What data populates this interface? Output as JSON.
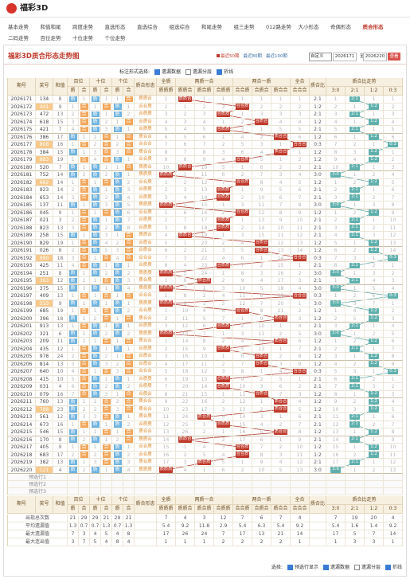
{
  "header": {
    "logo": "福彩3D"
  },
  "nav": {
    "items": [
      "基本走势",
      "和值和尾",
      "跨度走势",
      "直选形态",
      "直选综合",
      "组选综合",
      "和尾走势",
      "组三走势",
      "012路走势",
      "大小形态",
      "奇偶形态",
      "质合形态",
      "二码走势",
      "百位走势",
      "十位走势",
      "个位走势"
    ],
    "active": 11
  },
  "panel": {
    "title": "福彩3D质合形态走势图",
    "periods": [
      "最近50期",
      "最近80期",
      "最近100期"
    ],
    "active_period": 0,
    "custom": "自定义",
    "from": "2026171",
    "to_label": "至",
    "to": "2026220",
    "button": "查看"
  },
  "options": {
    "label": "标注形式选择:",
    "items": [
      {
        "label": "遗漏数据",
        "checked": true
      },
      {
        "label": "遗漏分层",
        "checked": false
      },
      {
        "label": "折线",
        "checked": true
      }
    ]
  },
  "table": {
    "group_headers": [
      "期号",
      "奖号",
      "和值",
      "百位",
      "十位",
      "个位",
      "质合形态",
      "全质",
      "两质一合",
      "两合一质",
      "全合",
      "质合比",
      "质合比走势"
    ],
    "digit_labels": [
      "质",
      "合"
    ],
    "forms": [
      "质质质",
      "质质合",
      "质合质",
      "合质质",
      "合合质",
      "合质合",
      "质合合",
      "合合合"
    ],
    "ratios": [
      "3:0",
      "2:1",
      "1:2",
      "0:3"
    ],
    "rows": [
      [
        "2026171",
        "134",
        8,
        "质",
        1,
        "质",
        1,
        1,
        "合",
        "质质合",
        1,
        "质质合",
        1,
        1,
        1,
        1,
        1,
        1,
        "2:1",
        1,
        "2:1",
        1,
        1
      ],
      [
        "2026172",
        "441",
        9,
        1,
        "合",
        1,
        "合",
        "质",
        1,
        "合合质",
        2,
        1,
        2,
        2,
        "合合质",
        2,
        2,
        2,
        "1:2",
        2,
        1,
        "1:2",
        2
      ],
      [
        "2026173",
        "472",
        13,
        2,
        "合",
        "质",
        1,
        "质",
        2,
        "合质质",
        3,
        2,
        3,
        "合质质",
        1,
        3,
        3,
        3,
        "2:1",
        3,
        "2:1",
        1,
        3
      ],
      [
        "2026174",
        "618",
        15,
        3,
        "合",
        "质",
        2,
        1,
        "合",
        "合质合",
        4,
        3,
        4,
        1,
        2,
        "合质合",
        4,
        4,
        "1:2",
        4,
        1,
        "1:2",
        4
      ],
      [
        "2026175",
        "421",
        7,
        4,
        "合",
        "质",
        3,
        "质",
        1,
        "合质质",
        5,
        4,
        5,
        "合质质",
        3,
        1,
        5,
        5,
        "2:1",
        5,
        "2:1",
        1,
        5
      ],
      [
        "2026176",
        "386",
        17,
        "质",
        1,
        1,
        "合",
        1,
        "合",
        "质合合",
        6,
        5,
        6,
        1,
        4,
        2,
        "质合合",
        6,
        "1:2",
        6,
        1,
        "1:2",
        6
      ],
      [
        "2026177",
        "808",
        16,
        1,
        "合",
        2,
        "合",
        2,
        "合",
        "合合合",
        7,
        6,
        7,
        2,
        5,
        3,
        1,
        "合合合",
        "0:3",
        7,
        2,
        1,
        "0:3"
      ],
      [
        "2026178",
        "384",
        15,
        "质",
        1,
        3,
        "合",
        3,
        "合",
        "质合合",
        8,
        7,
        8,
        3,
        6,
        4,
        "质合合",
        1,
        "1:2",
        8,
        3,
        "1:2",
        1
      ],
      [
        "2026179",
        "883",
        19,
        1,
        "合",
        4,
        "合",
        "质",
        1,
        "合合质",
        9,
        8,
        9,
        4,
        "合合质",
        5,
        1,
        2,
        "1:2",
        9,
        4,
        "1:2",
        2
      ],
      [
        "2026180",
        "520",
        7,
        "质",
        1,
        "质",
        1,
        1,
        "合",
        "质质合",
        10,
        "质质合",
        10,
        5,
        1,
        6,
        2,
        3,
        "2:1",
        10,
        "2:1",
        1,
        3
      ],
      [
        "2026181",
        "752",
        14,
        "质",
        2,
        "质",
        2,
        "质",
        1,
        "质质质",
        "质质质",
        1,
        11,
        6,
        2,
        7,
        3,
        4,
        "3:0",
        "3:0",
        1,
        2,
        4
      ],
      [
        "2026182",
        "662",
        14,
        1,
        "合",
        1,
        "合",
        "质",
        2,
        "合合质",
        1,
        2,
        12,
        7,
        "合合质",
        8,
        4,
        5,
        "1:2",
        1,
        2,
        "1:2",
        5
      ],
      [
        "2026183",
        "923",
        14,
        2,
        "合",
        "质",
        1,
        "质",
        3,
        "合质质",
        2,
        3,
        13,
        "合质质",
        1,
        9,
        5,
        6,
        "2:1",
        2,
        "2:1",
        1,
        6
      ],
      [
        "2026184",
        "653",
        14,
        3,
        "合",
        "质",
        2,
        "质",
        4,
        "合质质",
        3,
        4,
        14,
        "合质质",
        2,
        10,
        6,
        7,
        "2:1",
        3,
        "2:1",
        2,
        7
      ],
      [
        "2026185",
        "137",
        11,
        "质",
        1,
        "质",
        3,
        "质",
        5,
        "质质质",
        "质质质",
        5,
        15,
        1,
        3,
        11,
        7,
        8,
        "3:0",
        "3:0",
        1,
        3,
        8
      ],
      [
        "2026186",
        "045",
        9,
        1,
        "合",
        1,
        "合",
        "质",
        6,
        "合合质",
        1,
        6,
        16,
        2,
        "合合质",
        12,
        8,
        9,
        "1:2",
        1,
        2,
        "1:2",
        9
      ],
      [
        "2026187",
        "021",
        3,
        2,
        "合",
        "质",
        1,
        "质",
        7,
        "合质质",
        2,
        7,
        17,
        "合质质",
        1,
        13,
        9,
        10,
        "2:1",
        2,
        "2:1",
        1,
        10
      ],
      [
        "2026188",
        "823",
        13,
        3,
        "合",
        "质",
        2,
        "质",
        8,
        "合质质",
        3,
        8,
        18,
        "合质质",
        2,
        14,
        10,
        11,
        "2:1",
        3,
        "2:1",
        2,
        11
      ],
      [
        "2026189",
        "258",
        15,
        "质",
        1,
        "质",
        3,
        1,
        "合",
        "质质合",
        4,
        "质质合",
        19,
        1,
        3,
        15,
        11,
        12,
        "2:1",
        4,
        "2:1",
        3,
        12
      ],
      [
        "2026190",
        "829",
        19,
        1,
        "合",
        "质",
        4,
        2,
        "合",
        "合质合",
        5,
        1,
        20,
        2,
        4,
        "合质合",
        12,
        13,
        "1:2",
        5,
        1,
        "1:2",
        13
      ],
      [
        "2026191",
        "026",
        8,
        2,
        "合",
        "质",
        5,
        3,
        "合",
        "合质合",
        6,
        2,
        21,
        3,
        5,
        "合质合",
        13,
        14,
        "1:2",
        6,
        2,
        "1:2",
        14
      ],
      [
        "2026192",
        "990",
        18,
        3,
        "合",
        1,
        "合",
        4,
        "合",
        "合合合",
        7,
        3,
        22,
        4,
        6,
        1,
        14,
        "合合合",
        "0:3",
        7,
        3,
        1,
        "0:3"
      ],
      [
        "2026193",
        "425",
        11,
        4,
        "合",
        "质",
        1,
        "质",
        1,
        "合质质",
        8,
        4,
        23,
        "合质质",
        7,
        2,
        15,
        1,
        "2:1",
        8,
        "2:1",
        2,
        1
      ],
      [
        "2026194",
        "251",
        8,
        "质",
        1,
        "质",
        2,
        "质",
        2,
        "质质质",
        "质质质",
        5,
        24,
        1,
        8,
        3,
        16,
        2,
        "3:0",
        "3:0",
        1,
        3,
        2
      ],
      [
        "2026195",
        "363",
        12,
        "质",
        2,
        1,
        "合",
        "质",
        3,
        "质合质",
        1,
        6,
        "质合质",
        2,
        9,
        4,
        17,
        3,
        "2:1",
        1,
        "2:1",
        4,
        3
      ],
      [
        "2026196",
        "375",
        15,
        "质",
        3,
        "质",
        1,
        "质",
        4,
        "质质质",
        "质质质",
        7,
        1,
        3,
        10,
        5,
        18,
        4,
        "3:0",
        "3:0",
        1,
        5,
        4
      ],
      [
        "2026197",
        "409",
        13,
        1,
        "合",
        1,
        "合",
        1,
        "合",
        "合合合",
        1,
        8,
        2,
        4,
        11,
        6,
        19,
        "合合合",
        "0:3",
        1,
        2,
        6,
        "0:3"
      ],
      [
        "2026198",
        "333",
        9,
        "质",
        1,
        "质",
        1,
        "质",
        1,
        "质质质",
        "质质质",
        9,
        3,
        5,
        12,
        7,
        20,
        1,
        "3:0",
        "3:0",
        3,
        7,
        1
      ],
      [
        "2026199",
        "685",
        19,
        1,
        "合",
        1,
        "合",
        "质",
        2,
        "合合质",
        1,
        10,
        4,
        6,
        "合合质",
        8,
        21,
        2,
        "1:2",
        1,
        4,
        "1:2",
        2
      ],
      [
        "2026200",
        "396",
        18,
        "质",
        1,
        2,
        "合",
        1,
        "合",
        "质合合",
        2,
        11,
        5,
        7,
        1,
        9,
        "质合合",
        3,
        "1:2",
        2,
        5,
        "1:2",
        3
      ],
      [
        "2026201",
        "913",
        13,
        1,
        "合",
        "质",
        1,
        "质",
        1,
        "合质质",
        3,
        12,
        6,
        "合质质",
        2,
        10,
        1,
        4,
        "2:1",
        3,
        "2:1",
        1,
        4
      ],
      [
        "2026202",
        "321",
        6,
        "质",
        1,
        "质",
        2,
        "质",
        2,
        "质质质",
        "质质质",
        13,
        7,
        1,
        3,
        11,
        2,
        5,
        "3:0",
        "3:0",
        1,
        2,
        5
      ],
      [
        "2026203",
        "209",
        11,
        "质",
        2,
        1,
        "合",
        1,
        "合",
        "质合合",
        1,
        14,
        8,
        2,
        4,
        12,
        "质合合",
        6,
        "1:2",
        1,
        2,
        "1:2",
        6
      ],
      [
        "2026204",
        "435",
        12,
        1,
        "合",
        "质",
        1,
        "质",
        1,
        "合质质",
        2,
        15,
        9,
        "合质质",
        5,
        13,
        1,
        7,
        "2:1",
        2,
        "2:1",
        1,
        7
      ],
      [
        "2026205",
        "978",
        24,
        2,
        "合",
        "质",
        2,
        1,
        "合",
        "合质合",
        3,
        16,
        10,
        1,
        6,
        "合质合",
        2,
        8,
        "1:2",
        3,
        1,
        "1:2",
        8
      ],
      [
        "2026206",
        "814",
        13,
        3,
        "合",
        "质",
        3,
        2,
        "合",
        "合质合",
        4,
        17,
        11,
        2,
        7,
        "合质合",
        3,
        9,
        "1:2",
        4,
        2,
        "1:2",
        9
      ],
      [
        "2026207",
        "640",
        10,
        4,
        "合",
        1,
        "合",
        3,
        "合",
        "合合合",
        5,
        18,
        12,
        3,
        8,
        1,
        4,
        "合合合",
        "0:3",
        5,
        3,
        1,
        "0:3"
      ],
      [
        "2026208",
        "415",
        10,
        5,
        "合",
        "质",
        1,
        "质",
        1,
        "合质质",
        6,
        19,
        13,
        "合质质",
        9,
        2,
        5,
        1,
        "2:1",
        6,
        "2:1",
        2,
        1
      ],
      [
        "2026209",
        "031",
        4,
        6,
        "合",
        "质",
        2,
        "质",
        2,
        "合质质",
        7,
        20,
        14,
        "合质质",
        10,
        3,
        6,
        2,
        "2:1",
        7,
        "2:1",
        3,
        2
      ],
      [
        "2026210",
        "079",
        16,
        7,
        "合",
        "质",
        3,
        1,
        "合",
        "合质合",
        8,
        21,
        15,
        1,
        11,
        "合质合",
        7,
        3,
        "1:2",
        8,
        1,
        "1:2",
        3
      ],
      [
        "2026211",
        "760",
        13,
        "质",
        1,
        1,
        "合",
        2,
        "合",
        "质合合",
        9,
        22,
        16,
        2,
        12,
        1,
        "质合合",
        4,
        "1:2",
        9,
        2,
        "1:2",
        4
      ],
      [
        "2026212",
        "788",
        23,
        "质",
        2,
        2,
        "合",
        3,
        "合",
        "质合合",
        10,
        23,
        17,
        3,
        13,
        2,
        "质合合",
        5,
        "1:2",
        10,
        3,
        "1:2",
        5
      ],
      [
        "2026213",
        "561",
        12,
        "质",
        3,
        3,
        "合",
        "质",
        1,
        "质合质",
        11,
        24,
        "质合质",
        4,
        14,
        3,
        1,
        6,
        "2:1",
        11,
        "2:1",
        1,
        6
      ],
      [
        "2026214",
        "673",
        16,
        1,
        "合",
        "质",
        1,
        "质",
        2,
        "合质质",
        12,
        25,
        1,
        "合质质",
        15,
        4,
        2,
        7,
        "2:1",
        12,
        "2:1",
        2,
        7
      ],
      [
        "2026215",
        "546",
        15,
        "质",
        1,
        1,
        "合",
        1,
        "合",
        "质合合",
        13,
        26,
        2,
        1,
        16,
        5,
        "质合合",
        8,
        "1:2",
        13,
        1,
        "1:2",
        8
      ],
      [
        "2026216",
        "170",
        8,
        "质",
        2,
        "质",
        1,
        2,
        "合",
        "质质合",
        14,
        "质质合",
        3,
        2,
        17,
        6,
        1,
        9,
        "2:1",
        14,
        "2:1",
        1,
        9
      ],
      [
        "2026217",
        "405",
        9,
        1,
        "合",
        1,
        "合",
        "质",
        1,
        "合合质",
        15,
        1,
        4,
        3,
        "合合质",
        7,
        2,
        10,
        "1:2",
        15,
        1,
        "1:2",
        10
      ],
      [
        "2026218",
        "683",
        17,
        2,
        "合",
        2,
        "合",
        "质",
        2,
        "合合质",
        16,
        2,
        5,
        4,
        "合合质",
        8,
        3,
        11,
        "1:2",
        16,
        2,
        "1:2",
        11
      ],
      [
        "2026219",
        "382",
        13,
        "质",
        1,
        3,
        "合",
        "质",
        3,
        "质合质",
        17,
        3,
        "质合质",
        5,
        1,
        9,
        4,
        12,
        "2:1",
        17,
        "2:1",
        1,
        12
      ],
      [
        "2026220",
        "121",
        4,
        "质",
        2,
        "质",
        1,
        "质",
        4,
        "质质质",
        "质质质",
        4,
        1,
        6,
        2,
        10,
        5,
        13,
        "3:0",
        "3:0",
        1,
        2,
        13
      ]
    ],
    "preview": [
      "预选行1",
      "预选行2",
      "预选行3"
    ],
    "stats": [
      {
        "label": "出现总次数",
        "values": [
          21,
          29,
          29,
          21,
          29,
          21,
          7,
          4,
          3,
          12,
          7,
          6,
          7,
          4,
          7,
          19,
          20,
          4
        ]
      },
      {
        "label": "平均遗漏值",
        "values": [
          1.3,
          0.7,
          0.7,
          1.3,
          0.7,
          1.3,
          5.4,
          9.2,
          11.8,
          2.9,
          5.4,
          6.3,
          5.4,
          9.2,
          5.4,
          1.6,
          1.4,
          9.2
        ]
      },
      {
        "label": "最大遗漏值",
        "values": [
          7,
          3,
          4,
          5,
          4,
          8,
          17,
          26,
          24,
          7,
          17,
          13,
          21,
          14,
          17,
          5,
          7,
          14
        ]
      },
      {
        "label": "最大连出值",
        "values": [
          3,
          7,
          5,
          4,
          8,
          4,
          1,
          1,
          1,
          2,
          2,
          2,
          2,
          1,
          1,
          3,
          3,
          1
        ]
      }
    ]
  },
  "bottom_options": {
    "label": "选择:",
    "items": [
      {
        "label": "预选行显示",
        "checked": true
      },
      {
        "label": "遗漏数据",
        "checked": true
      },
      {
        "label": "遗漏分层",
        "checked": false
      },
      {
        "label": "折线",
        "checked": true
      }
    ]
  }
}
